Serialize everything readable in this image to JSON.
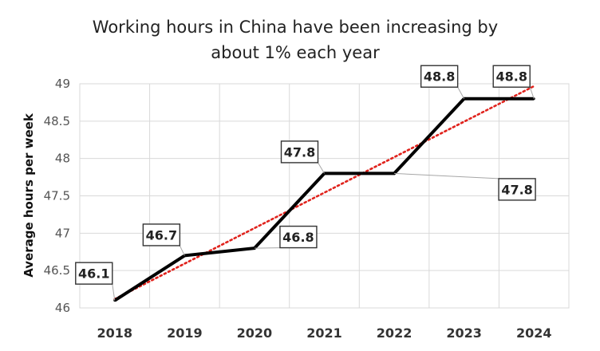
{
  "chart_data": {
    "type": "line",
    "title": [
      "Working hours in China have been increasing by",
      "about 1% each year"
    ],
    "xlabel": "",
    "ylabel": "Average hours per week",
    "categories": [
      "2018",
      "2019",
      "2020",
      "2021",
      "2022",
      "2023",
      "2024"
    ],
    "series": [
      {
        "values": [
          46.1,
          46.7,
          46.8,
          47.8,
          47.8,
          48.8,
          48.8
        ],
        "color": "#000000",
        "data_labels": [
          "46.1",
          "46.7",
          "46.8",
          "47.8",
          "47.8",
          "48.8",
          "48.8"
        ]
      }
    ],
    "trendline": {
      "type": "linear",
      "color": "#e0221c",
      "style": "dotted"
    },
    "ylim": [
      46,
      49
    ],
    "yticks": [
      "46",
      "46.5",
      "47",
      "47.5",
      "48",
      "48.5",
      "49"
    ],
    "grid": true,
    "legend": "none"
  }
}
